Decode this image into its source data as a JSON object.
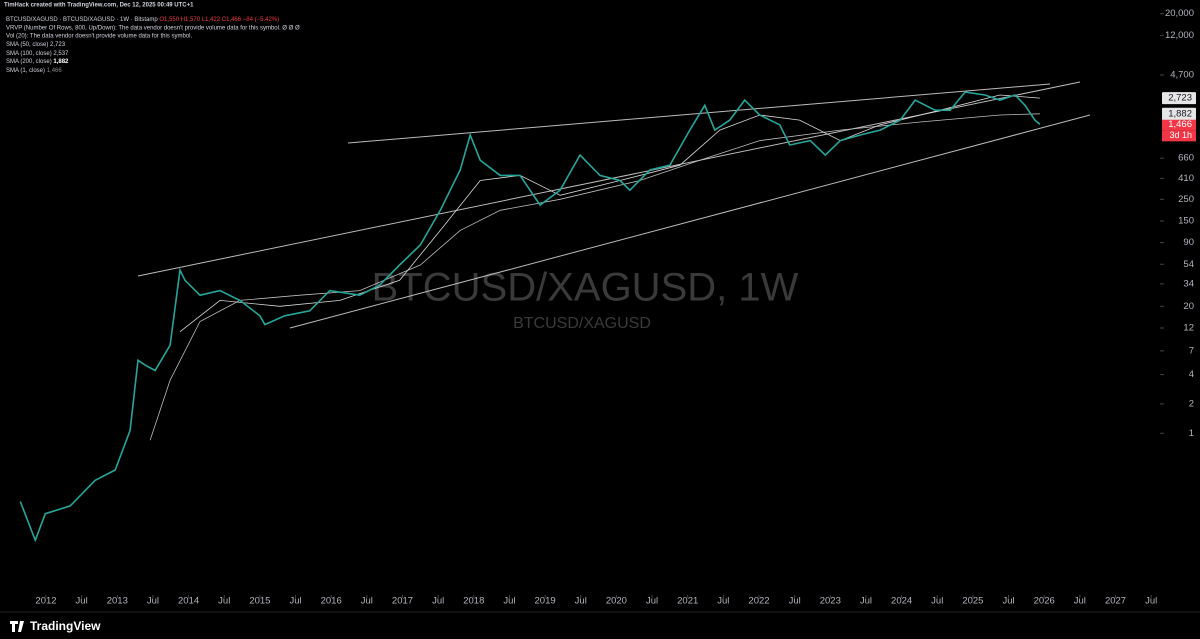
{
  "header": {
    "author": "TimHack created with TradingView.com, Dec 12, 2025 00:49 UTC+1",
    "symbol": "BTCUSD/XAGUSD · BTCUSD/XAGUSD · 1W · Bitstamp",
    "ohlc": "O1,550 H1,570 L1,422 C1,466 −84 (−5.42%)",
    "lines": [
      "VRVP (Number Of Rows, 800, Up/Down): The data vendor doesn't provide volume data for this symbol.  Ø  Ø  Ø",
      "Vol (20): The data vendor doesn't provide volume data for this symbol."
    ],
    "other_studies": [
      {
        "name": "SMA (100, close)",
        "label": "2,537"
      },
      {
        "name": "SMA (1, close)",
        "label": "1,466"
      }
    ],
    "brand": "TradingView"
  },
  "chart_data": {
    "type": "line",
    "title": "BTCUSD/XAGUSD, 1W",
    "log_scale": true,
    "grid": false,
    "countdown": "3d 1h",
    "xlim": [
      2011.355,
      2027.624
    ],
    "xticks": [
      2012,
      {
        "value": 2012.5,
        "label": "Jul"
      },
      2013,
      {
        "value": 2013.5,
        "label": "Jul"
      },
      2014,
      {
        "value": 2014.5,
        "label": "Jul"
      },
      2015,
      {
        "value": 2015.5,
        "label": "Jul"
      },
      2016,
      {
        "value": 2016.5,
        "label": "Jul"
      },
      2017,
      {
        "value": 2017.5,
        "label": "Jul"
      },
      2018,
      {
        "value": 2018.5,
        "label": "Jul"
      },
      2019,
      {
        "value": 2019.5,
        "label": "Jul"
      },
      2020,
      {
        "value": 2020.5,
        "label": "Jul"
      },
      2021,
      {
        "value": 2021.5,
        "label": "Jul"
      },
      2022,
      {
        "value": 2022.5,
        "label": "Jul"
      },
      2023,
      {
        "value": 2023.5,
        "label": "Jul"
      },
      2024,
      {
        "value": 2024.5,
        "label": "Jul"
      },
      2025,
      {
        "value": 2025.5,
        "label": "Jul"
      },
      2026,
      {
        "value": 2026.5,
        "label": "Jul"
      },
      2027,
      {
        "value": 2027.5,
        "label": "Jul"
      }
    ],
    "ylim": [
      0.022,
      27600
    ],
    "yticks": [
      {
        "value": 20000,
        "label": "20,000"
      },
      {
        "value": 12000,
        "label": "12,000"
      },
      {
        "value": 4700,
        "label": "4,700"
      },
      660,
      410,
      250,
      150,
      90,
      54,
      34,
      20,
      12,
      7,
      4,
      2,
      1
    ],
    "series": [
      {
        "name": "BTCUSD/XAGUSD",
        "color": "#26a69a",
        "last_color": "#f23645",
        "last_label": "1,466",
        "x": [
          2011.64,
          2011.85,
          2011.99,
          2012.34,
          2012.69,
          2012.97,
          2013.18,
          2013.29,
          2013.39,
          2013.53,
          2013.74,
          2013.88,
          2013.95,
          2014.16,
          2014.44,
          2014.72,
          2015.0,
          2015.07,
          2015.35,
          2015.7,
          2015.98,
          2016.4,
          2016.68,
          2016.96,
          2017.25,
          2017.53,
          2017.81,
          2017.95,
          2018.09,
          2018.37,
          2018.65,
          2018.93,
          2019.21,
          2019.49,
          2019.77,
          2020.05,
          2020.19,
          2020.47,
          2020.75,
          2021.03,
          2021.24,
          2021.38,
          2021.59,
          2021.8,
          2022.01,
          2022.29,
          2022.43,
          2022.72,
          2022.93,
          2023.14,
          2023.42,
          2023.7,
          2023.98,
          2024.19,
          2024.47,
          2024.68,
          2024.89,
          2025.17,
          2025.38,
          2025.59,
          2025.73,
          2025.87,
          2025.94
        ],
        "values": [
          0.2,
          0.08,
          0.15,
          0.18,
          0.33,
          0.42,
          1.07,
          5.6,
          5,
          4.4,
          8,
          47,
          37,
          26,
          29,
          23,
          16,
          13,
          16,
          18,
          29,
          26,
          33,
          53,
          85,
          193,
          500,
          1140,
          630,
          440,
          440,
          218,
          310,
          710,
          440,
          390,
          310,
          500,
          560,
          1280,
          2300,
          1280,
          1620,
          2600,
          1830,
          1450,
          900,
          1000,
          710,
          1000,
          1140,
          1280,
          1620,
          2600,
          2050,
          2050,
          3140,
          2930,
          2600,
          2930,
          2300,
          1620,
          1466
        ]
      },
      {
        "name": "SMA (50, close)",
        "color": "#d8d8d8",
        "last_label": "2,723",
        "x": [
          2013.88,
          2014.44,
          2015.28,
          2016.12,
          2016.96,
          2017.53,
          2018.09,
          2018.65,
          2019.21,
          2020.05,
          2020.89,
          2021.45,
          2022.01,
          2022.57,
          2023.14,
          2023.7,
          2024.54,
          2025.38,
          2025.94
        ],
        "values": [
          11,
          23,
          20,
          23,
          37,
          120,
          390,
          440,
          275,
          390,
          560,
          1280,
          1830,
          1620,
          1000,
          1450,
          2050,
          2930,
          2723
        ]
      },
      {
        "name": "SMA (200, close)",
        "color": "#bdbdbd",
        "last_label": "1,882",
        "x": [
          2013.46,
          2013.74,
          2014.16,
          2014.72,
          2015.56,
          2016.4,
          2017.25,
          2017.81,
          2018.37,
          2019.21,
          2020.33,
          2021.17,
          2022.01,
          2023.14,
          2024.26,
          2025.38,
          2025.94
        ],
        "values": [
          0.85,
          3.5,
          14,
          23,
          26,
          29,
          53,
          120,
          193,
          250,
          390,
          630,
          1000,
          1280,
          1550,
          1830,
          1882
        ]
      }
    ]
  }
}
